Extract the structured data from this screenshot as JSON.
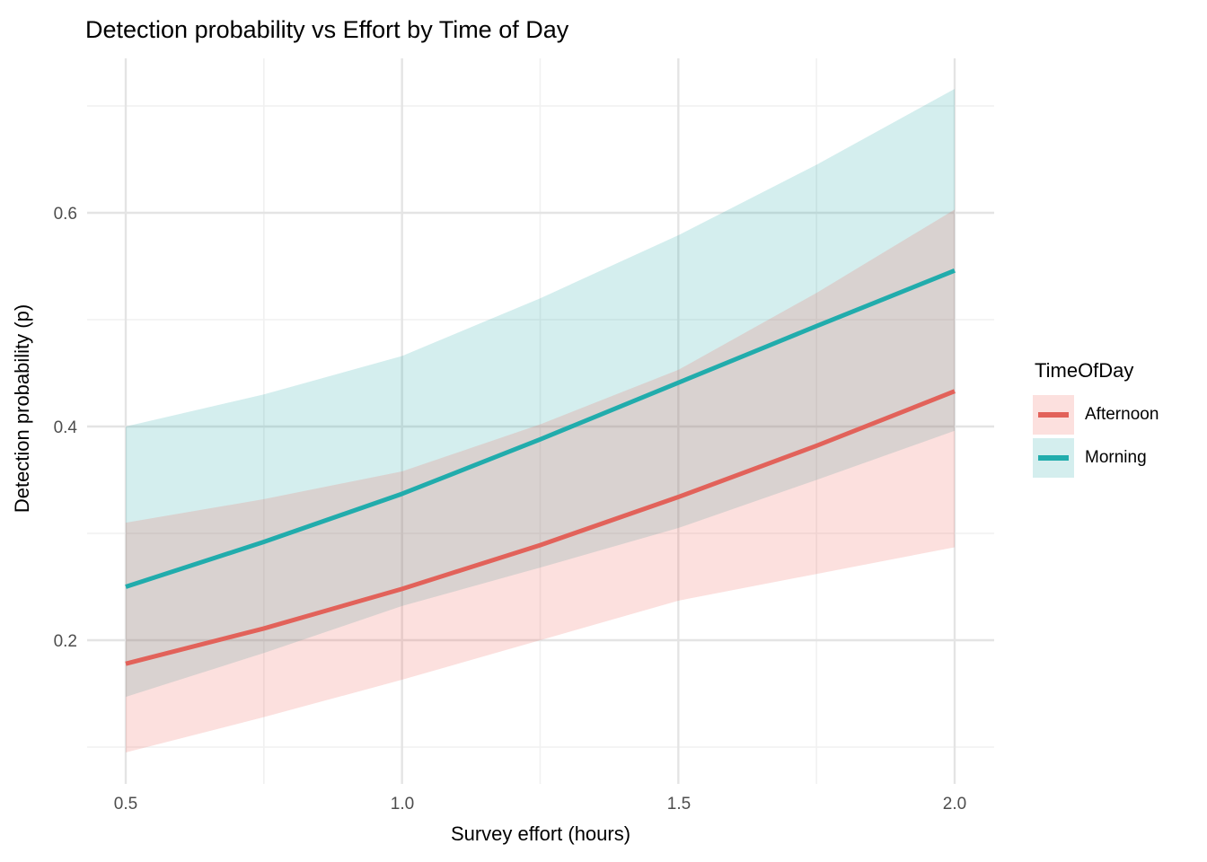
{
  "page": {
    "background": "#FFFFFF"
  },
  "chart_data": {
    "type": "line",
    "title": "Detection probability vs Effort by Time of Day",
    "xlabel": "Survey effort (hours)",
    "ylabel": "Detection probability (p)",
    "legend": {
      "title": "TimeOfDay",
      "position": "right"
    },
    "x": [
      0.5,
      0.75,
      1.0,
      1.25,
      1.5,
      1.75,
      2.0
    ],
    "series": [
      {
        "name": "Afternoon",
        "line_color": "#E2625A",
        "fill_color": "#F0655C",
        "values": [
          0.178,
          0.211,
          0.248,
          0.289,
          0.334,
          0.382,
          0.433
        ],
        "lower": [
          0.095,
          0.128,
          0.163,
          0.2,
          0.237,
          0.262,
          0.287
        ],
        "upper": [
          0.31,
          0.332,
          0.358,
          0.402,
          0.453,
          0.525,
          0.603
        ]
      },
      {
        "name": "Morning",
        "line_color": "#21ACAC",
        "fill_color": "#2AACAC",
        "values": [
          0.25,
          0.292,
          0.337,
          0.388,
          0.441,
          0.494,
          0.546
        ],
        "lower": [
          0.147,
          0.188,
          0.232,
          0.268,
          0.305,
          0.35,
          0.396
        ],
        "upper": [
          0.4,
          0.43,
          0.466,
          0.52,
          0.579,
          0.645,
          0.716
        ]
      }
    ],
    "axes": {
      "x_ticks": {
        "values": [
          0.5,
          1.0,
          1.5,
          2.0
        ],
        "labels": [
          "0.5",
          "1.0",
          "1.5",
          "2.0"
        ]
      },
      "y_ticks": {
        "values": [
          0.2,
          0.4,
          0.6
        ],
        "labels": [
          "0.2",
          "0.4",
          "0.6"
        ]
      },
      "x_minor": [
        0.75,
        1.25,
        1.75
      ],
      "y_minor": [
        0.1,
        0.3,
        0.5,
        0.7
      ],
      "xlim": [
        0.5,
        2.0
      ],
      "ylim": [
        0.065,
        0.745
      ],
      "grid": true
    },
    "style": {
      "grid_major": "#E4E4E4",
      "grid_minor": "#F1F1F1",
      "tick_text_color": "#4D4D4D",
      "text_color": "#000000",
      "ribbon_opacity": 0.2,
      "line_width": 5
    }
  }
}
